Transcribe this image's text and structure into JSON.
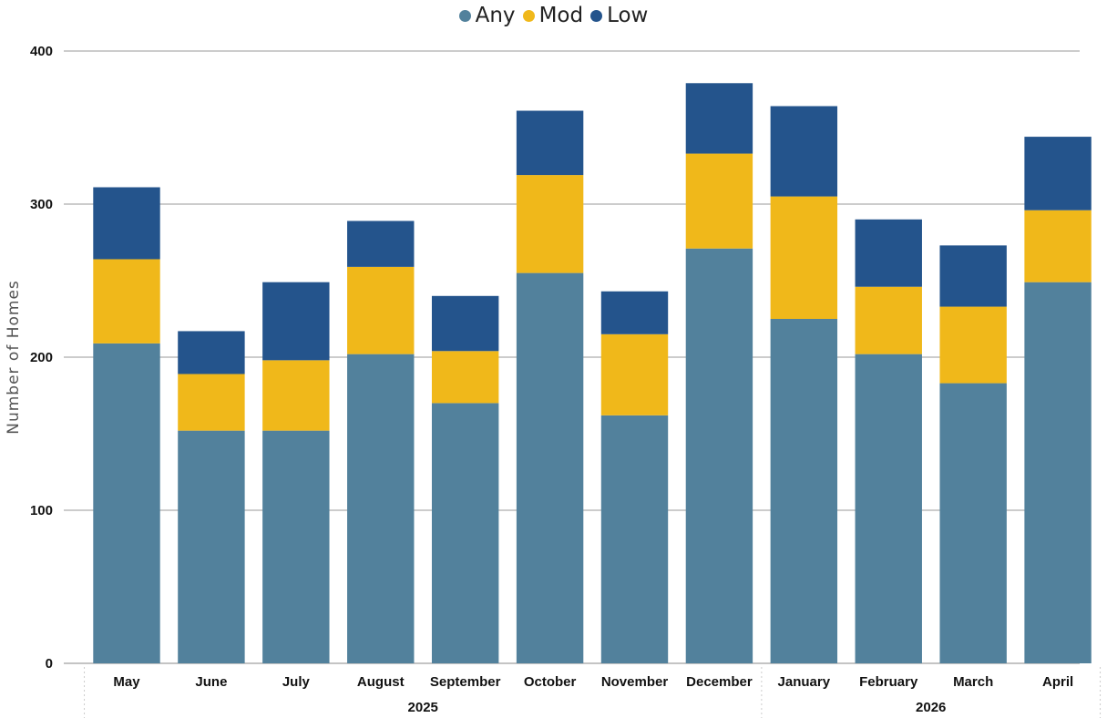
{
  "chart_data": {
    "type": "bar",
    "stacked": true,
    "categories": [
      "May",
      "June",
      "July",
      "August",
      "September",
      "October",
      "November",
      "December",
      "January",
      "February",
      "March",
      "April"
    ],
    "groups": [
      {
        "label": "2025",
        "categories": [
          "May",
          "June",
          "July",
          "August",
          "September",
          "October",
          "November",
          "December"
        ]
      },
      {
        "label": "2026",
        "categories": [
          "January",
          "February",
          "March",
          "April"
        ]
      }
    ],
    "series": [
      {
        "name": "Any",
        "color": "#52819c",
        "values": [
          209,
          152,
          152,
          202,
          170,
          255,
          162,
          271,
          225,
          202,
          183,
          249
        ]
      },
      {
        "name": "Mod",
        "color": "#f0b81a",
        "values": [
          55,
          37,
          46,
          57,
          34,
          64,
          53,
          62,
          80,
          44,
          50,
          47
        ]
      },
      {
        "name": "Low",
        "color": "#24548c",
        "values": [
          47,
          28,
          51,
          30,
          36,
          42,
          28,
          46,
          59,
          44,
          40,
          48
        ]
      }
    ],
    "xlabel": "",
    "ylabel": "Number of Homes",
    "ylim": [
      0,
      400
    ],
    "yticks": [
      0,
      100,
      200,
      300,
      400
    ],
    "grid": true,
    "legend_position": "top-center"
  }
}
